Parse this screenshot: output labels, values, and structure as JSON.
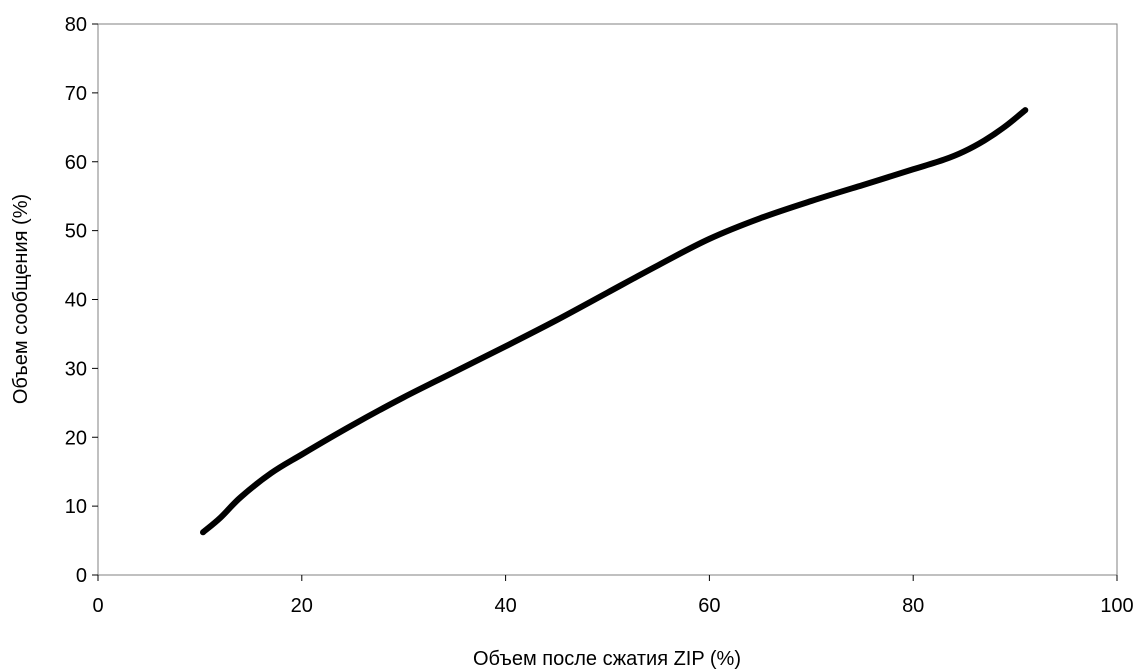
{
  "chart_data": {
    "type": "line",
    "title": "",
    "xlabel": "Объем после сжатия ZIP (%)",
    "ylabel": "Объем сообщения (%)",
    "xlim": [
      0,
      100
    ],
    "ylim": [
      0,
      80
    ],
    "xticks": [
      0,
      20,
      40,
      60,
      80,
      100
    ],
    "yticks": [
      0,
      10,
      20,
      30,
      40,
      50,
      60,
      70,
      80
    ],
    "xtick_labels": [
      "0",
      "20",
      "40",
      "60",
      "80",
      "100"
    ],
    "ytick_labels": [
      "0",
      "10",
      "20",
      "30",
      "40",
      "50",
      "60",
      "70",
      "80"
    ],
    "grid": false,
    "legend": "none",
    "series": [
      {
        "color": "#000000",
        "x": [
          10.3,
          12,
          14,
          17,
          20,
          25,
          30,
          35,
          40,
          45,
          50,
          55,
          60,
          65,
          70,
          75,
          80,
          83,
          85,
          87,
          89,
          91
        ],
        "y": [
          6.2,
          8.3,
          11.3,
          14.8,
          17.5,
          21.8,
          25.8,
          29.5,
          33.2,
          37.0,
          41.0,
          45.0,
          48.8,
          51.8,
          54.3,
          56.6,
          58.9,
          60.3,
          61.5,
          63.1,
          65.1,
          67.5
        ]
      }
    ]
  }
}
